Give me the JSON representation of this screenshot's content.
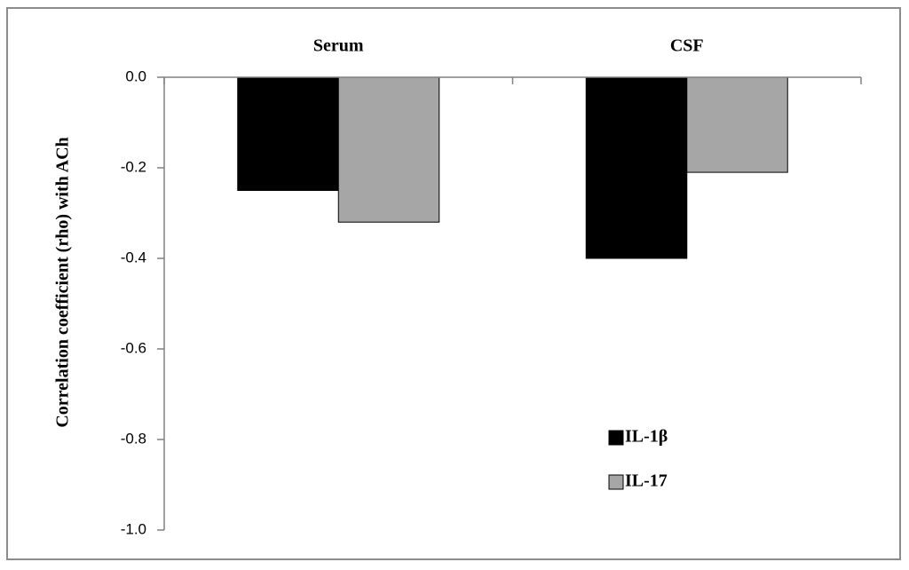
{
  "chart_data": {
    "type": "bar",
    "y_label": "Correlation coefficient (rho) with ACh",
    "categories": [
      "Serum",
      "CSF"
    ],
    "series": [
      {
        "name": "IL-1β",
        "color": "#000000",
        "values": [
          -0.25,
          -0.4
        ]
      },
      {
        "name": "IL-17",
        "color": "#a6a6a6",
        "values": [
          -0.32,
          -0.21
        ]
      }
    ],
    "ylim": [
      -1.0,
      0.0
    ],
    "yticks": [
      {
        "value": 0,
        "label": "0.0"
      },
      -0.2,
      -0.4,
      -0.6,
      -0.8,
      {
        "value": -1,
        "label": "-1.0"
      }
    ],
    "grid": false
  }
}
